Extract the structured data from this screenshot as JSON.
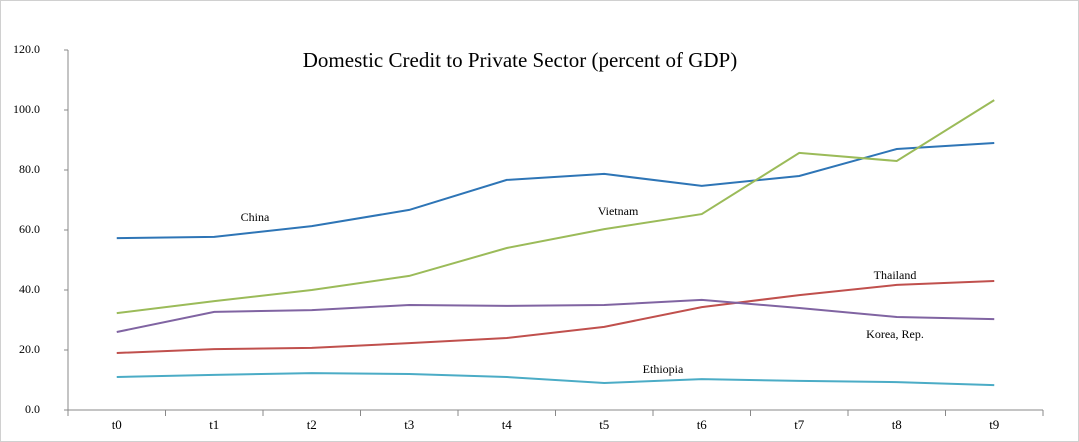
{
  "chart_data": {
    "type": "line",
    "title": "Domestic Credit to Private Sector (percent of GDP)",
    "categories": [
      "t0",
      "t1",
      "t2",
      "t3",
      "t4",
      "t5",
      "t6",
      "t7",
      "t8",
      "t9"
    ],
    "ylim": [
      0,
      120
    ],
    "yticks": [
      {
        "value": 0,
        "label": "0.0"
      },
      {
        "value": 20,
        "label": "20.0"
      },
      {
        "value": 40,
        "label": "40.0"
      },
      {
        "value": 60,
        "label": "60.0"
      },
      {
        "value": 80,
        "label": "80.0"
      },
      {
        "value": 100,
        "label": "100.0"
      },
      {
        "value": 120,
        "label": "120.0"
      }
    ],
    "grid": false,
    "series": [
      {
        "name": "China",
        "color": "#2e75b6",
        "values": [
          57.3,
          57.7,
          61.3,
          66.7,
          76.7,
          78.7,
          74.7,
          78,
          87,
          89
        ]
      },
      {
        "name": "Vietnam",
        "color": "#9bbb59",
        "values": [
          32.3,
          36.3,
          40,
          44.7,
          54,
          60.3,
          65.3,
          85.7,
          83,
          103.3
        ]
      },
      {
        "name": "Thailand",
        "color": "#c0504d",
        "values": [
          19,
          20.3,
          20.7,
          22.3,
          24,
          27.7,
          34.3,
          38.3,
          41.7,
          43
        ]
      },
      {
        "name": "Korea, Rep.",
        "color": "#8064a2",
        "values": [
          26,
          32.7,
          33.3,
          35,
          34.7,
          35,
          36.7,
          34,
          31,
          30.3
        ]
      },
      {
        "name": "Ethiopia",
        "color": "#4bacc6",
        "values": [
          11,
          11.7,
          12.3,
          12,
          11,
          9,
          10.3,
          9.7,
          9.3,
          8.3
        ]
      }
    ]
  }
}
